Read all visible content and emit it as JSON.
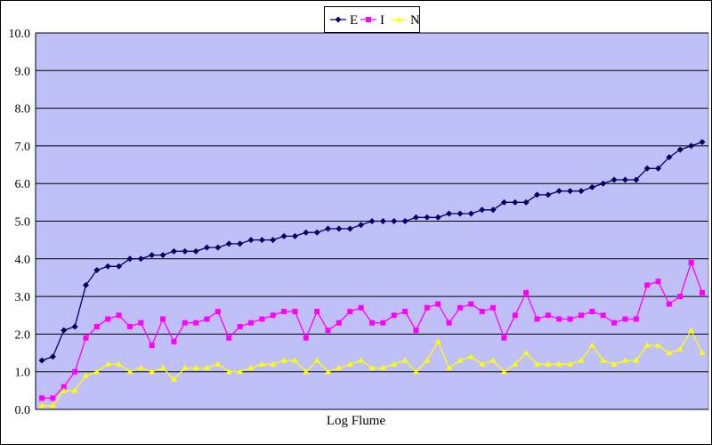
{
  "chart_data": {
    "type": "line",
    "title": "",
    "xlabel": "Log Flume",
    "ylabel": "",
    "ylim": [
      0,
      10
    ],
    "yticks": [
      "0.0",
      "1.0",
      "2.0",
      "3.0",
      "4.0",
      "5.0",
      "6.0",
      "7.0",
      "8.0",
      "9.0",
      "10.0"
    ],
    "grid": true,
    "legend": "top-center",
    "plot_background": "#c0c0f8",
    "series": [
      {
        "name": "E",
        "color": "#000066",
        "marker": "diamond",
        "values": [
          1.3,
          1.4,
          2.1,
          2.2,
          3.3,
          3.7,
          3.8,
          3.8,
          4.0,
          4.0,
          4.1,
          4.1,
          4.2,
          4.2,
          4.2,
          4.3,
          4.3,
          4.4,
          4.4,
          4.5,
          4.5,
          4.5,
          4.6,
          4.6,
          4.7,
          4.7,
          4.8,
          4.8,
          4.8,
          4.9,
          5.0,
          5.0,
          5.0,
          5.0,
          5.1,
          5.1,
          5.1,
          5.2,
          5.2,
          5.2,
          5.3,
          5.3,
          5.5,
          5.5,
          5.5,
          5.7,
          5.7,
          5.8,
          5.8,
          5.8,
          5.9,
          6.0,
          6.1,
          6.1,
          6.1,
          6.4,
          6.4,
          6.7,
          6.9,
          7.0,
          7.1
        ]
      },
      {
        "name": "I",
        "color": "#ff00ff",
        "marker": "square",
        "values": [
          0.3,
          0.3,
          0.6,
          1.0,
          1.9,
          2.2,
          2.4,
          2.5,
          2.2,
          2.3,
          1.7,
          2.4,
          1.8,
          2.3,
          2.3,
          2.4,
          2.6,
          1.9,
          2.2,
          2.3,
          2.4,
          2.5,
          2.6,
          2.6,
          1.9,
          2.6,
          2.1,
          2.3,
          2.6,
          2.7,
          2.3,
          2.3,
          2.5,
          2.6,
          2.1,
          2.7,
          2.8,
          2.3,
          2.7,
          2.8,
          2.6,
          2.7,
          1.9,
          2.5,
          3.1,
          2.4,
          2.5,
          2.4,
          2.4,
          2.5,
          2.6,
          2.5,
          2.3,
          2.4,
          2.4,
          3.3,
          3.4,
          2.8,
          3.0,
          3.9,
          3.1
        ]
      },
      {
        "name": "N",
        "color": "#ffff00",
        "marker": "triangle",
        "values": [
          0.1,
          0.1,
          0.5,
          0.5,
          0.9,
          1.0,
          1.2,
          1.2,
          1.0,
          1.1,
          1.0,
          1.1,
          0.8,
          1.1,
          1.1,
          1.1,
          1.2,
          1.0,
          1.0,
          1.1,
          1.2,
          1.2,
          1.3,
          1.3,
          1.0,
          1.3,
          1.0,
          1.1,
          1.2,
          1.3,
          1.1,
          1.1,
          1.2,
          1.3,
          1.0,
          1.3,
          1.8,
          1.1,
          1.3,
          1.4,
          1.2,
          1.3,
          1.0,
          1.2,
          1.5,
          1.2,
          1.2,
          1.2,
          1.2,
          1.3,
          1.7,
          1.3,
          1.2,
          1.3,
          1.3,
          1.7,
          1.7,
          1.5,
          1.6,
          2.1,
          1.5
        ]
      }
    ]
  }
}
